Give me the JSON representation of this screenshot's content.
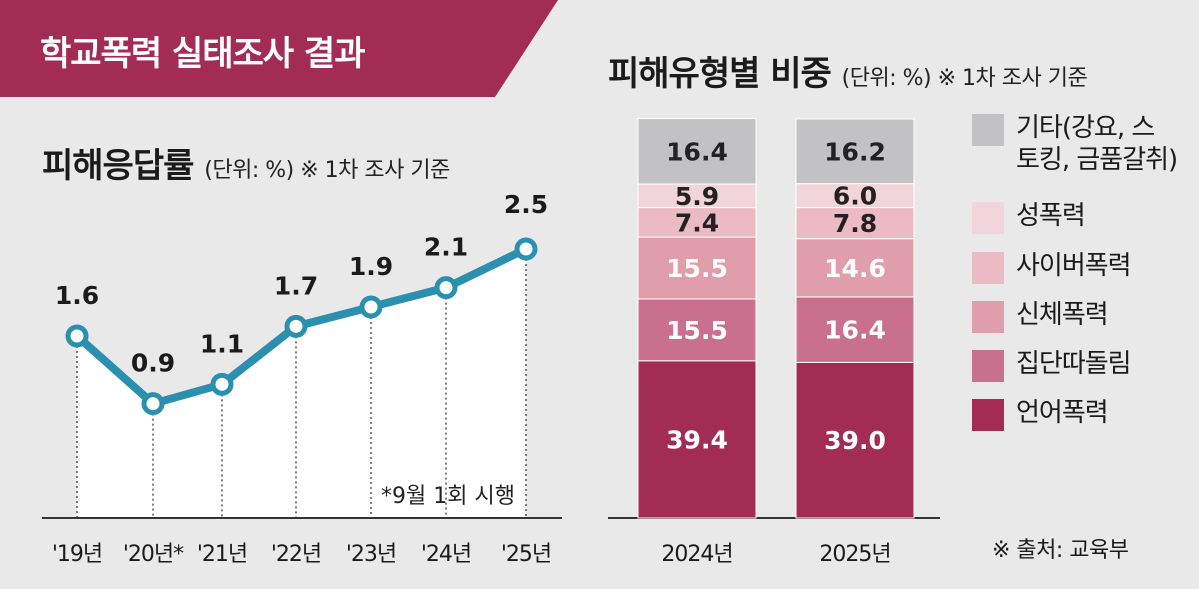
{
  "banner": {
    "title": "학교폭력 실태조사 결과"
  },
  "left_panel": {
    "title": "피해응답률",
    "unit_note": "(단위: %) ※ 1차 조사 기준",
    "footnote": "*9월 1회 시행"
  },
  "right_panel": {
    "title": "피해유형별 비중",
    "unit_note": "(단위: %) ※ 1차 조사 기준"
  },
  "source": "※ 출처: 교육부",
  "colors": {
    "banner": "#a32c55",
    "line": "#2b8fb0",
    "marker_fill": "#ffffff"
  },
  "chart_data": [
    {
      "type": "line",
      "title": "피해응답률",
      "x": [
        "'19년",
        "'20년*",
        "'21년",
        "'22년",
        "'23년",
        "'24년",
        "'25년"
      ],
      "series": [
        {
          "values": [
            1.6,
            0.9,
            1.1,
            1.7,
            1.9,
            2.1,
            2.5
          ]
        }
      ],
      "data_labels": [
        "1.6",
        "0.9",
        "1.1",
        "1.7",
        "1.9",
        "2.1",
        "2.5"
      ],
      "ylim": [
        0,
        2.8
      ],
      "grid": "dotted vertical guides"
    },
    {
      "type": "bar",
      "stacked": true,
      "title": "피해유형별 비중",
      "categories": [
        "2024년",
        "2025년"
      ],
      "series": [
        {
          "name": "언어폭력",
          "values": [
            39.4,
            39.0
          ],
          "color": "#a32c55",
          "labels": [
            "39.4",
            "39.0"
          ]
        },
        {
          "name": "집단따돌림",
          "values": [
            15.5,
            16.4
          ],
          "color": "#c8708d",
          "labels": [
            "15.5",
            "16.4"
          ]
        },
        {
          "name": "신체폭력",
          "values": [
            15.5,
            14.6
          ],
          "color": "#e09dab",
          "labels": [
            "15.5",
            "14.6"
          ]
        },
        {
          "name": "사이버폭력",
          "values": [
            7.4,
            7.8
          ],
          "color": "#ecbac4",
          "labels": [
            "7.4",
            "7.8"
          ]
        },
        {
          "name": "성폭력",
          "values": [
            5.9,
            6.0
          ],
          "color": "#f2d5da",
          "labels": [
            "5.9",
            "6.0"
          ]
        },
        {
          "name": "기타(강요, 스토킹, 금품갈취)",
          "legend_lines": [
            "기타(강요, 스",
            "토킹, 금품갈취)"
          ],
          "values": [
            16.4,
            16.2
          ],
          "color": "#c2c2c5",
          "labels": [
            "16.4",
            "16.2"
          ]
        }
      ],
      "ylim": [
        0,
        100
      ],
      "legend": "right"
    }
  ]
}
